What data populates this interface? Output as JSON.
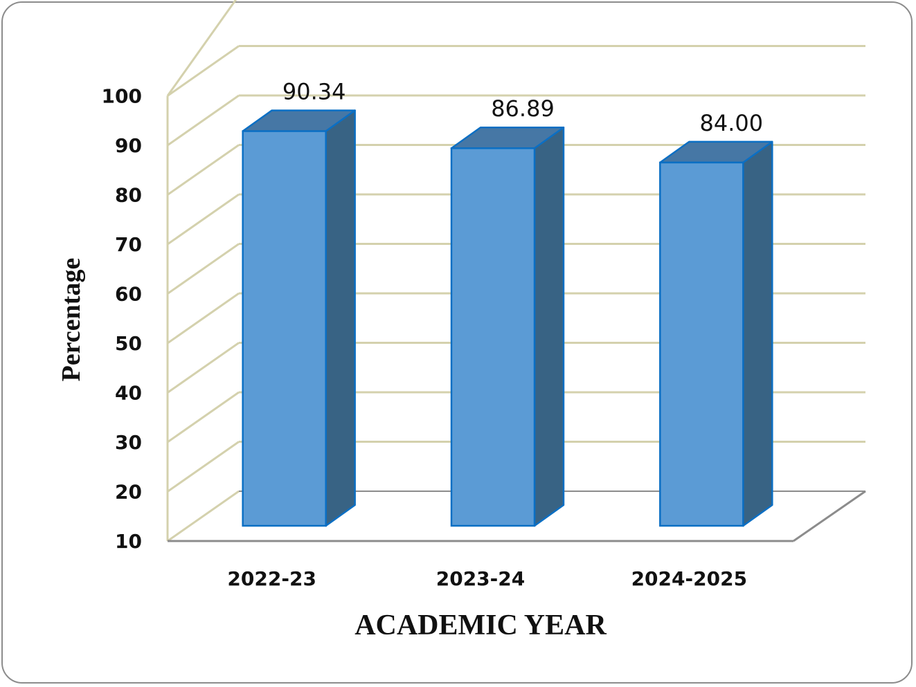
{
  "chart_data": {
    "type": "bar",
    "style": "3d-column",
    "categories": [
      "2022-23",
      "2023-24",
      "2024-2025"
    ],
    "values": [
      90.34,
      86.89,
      84.0
    ],
    "value_labels": [
      "90.34",
      "86.89",
      "84.00"
    ],
    "title": "",
    "xlabel": "ACADEMIC YEAR",
    "ylabel": "Percentage",
    "ylim": [
      10,
      100
    ],
    "yticks": [
      "10",
      "20",
      "30",
      "40",
      "50",
      "60",
      "70",
      "80",
      "90",
      "100"
    ],
    "grid": true,
    "legend": "none"
  },
  "colors": {
    "bar_front": "#5b9bd5",
    "bar_side": "#386384",
    "bar_top": "#4677a5",
    "bar_stroke": "#0b6fc4",
    "gridline": "#d4d1ad",
    "floor_edge": "#8c8c8c",
    "frame_border": "#8c8c8c"
  }
}
